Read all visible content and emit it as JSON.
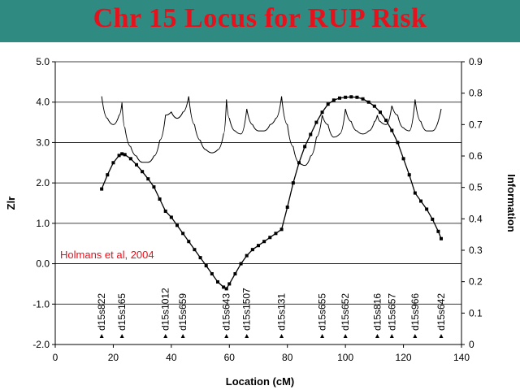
{
  "slide": {
    "title": "Chr 15 Locus for RUP Risk"
  },
  "colors": {
    "title_bar": "#2f8a82",
    "title_text": "#e8101a",
    "annotation": "#e8101a"
  },
  "chart_data": {
    "type": "line",
    "xlabel": "Location (cM)",
    "ylabel": "Zlr",
    "y2label": "Information",
    "xlim": [
      0,
      140
    ],
    "ylim": [
      -2.0,
      5.0
    ],
    "y2lim": [
      0,
      0.9
    ],
    "xticks": [
      "0",
      "20",
      "40",
      "60",
      "80",
      "100",
      "120",
      "140"
    ],
    "yticks": [
      "-2.0",
      "-1.0",
      "0.0",
      "1.0",
      "2.0",
      "3.0",
      "4.0",
      "5.0"
    ],
    "y2ticks": [
      "0",
      "0.1",
      "0.2",
      "0.3",
      "0.4",
      "0.5",
      "0.6",
      "0.7",
      "0.8",
      "0.9"
    ],
    "grid": "horizontal",
    "annotation": "Holmans et al, 2004",
    "markers": [
      {
        "name": "d15s822",
        "x": 16
      },
      {
        "name": "d15s165",
        "x": 23
      },
      {
        "name": "d15s1012",
        "x": 38
      },
      {
        "name": "d15s659",
        "x": 44
      },
      {
        "name": "d15s643",
        "x": 59
      },
      {
        "name": "d15s1507",
        "x": 66
      },
      {
        "name": "d15s131",
        "x": 78
      },
      {
        "name": "d15s655",
        "x": 92
      },
      {
        "name": "d15s652",
        "x": 100
      },
      {
        "name": "d15s816",
        "x": 111
      },
      {
        "name": "d15s657",
        "x": 116
      },
      {
        "name": "d15s966",
        "x": 124
      },
      {
        "name": "d15s642",
        "x": 133
      }
    ],
    "series": [
      {
        "axis": "left",
        "x": [
          16,
          18,
          20,
          22,
          23,
          24,
          26,
          28,
          30,
          32,
          34,
          36,
          38,
          40,
          42,
          44,
          46,
          48,
          50,
          52,
          54,
          56,
          58,
          59,
          60,
          62,
          64,
          66,
          68,
          70,
          72,
          74,
          76,
          78,
          80,
          82,
          84,
          86,
          88,
          90,
          92,
          94,
          96,
          98,
          100,
          102,
          104,
          106,
          108,
          110,
          112,
          114,
          116,
          118,
          120,
          122,
          124,
          126,
          128,
          130,
          132,
          133
        ],
        "values": [
          1.85,
          2.2,
          2.5,
          2.68,
          2.72,
          2.7,
          2.6,
          2.45,
          2.28,
          2.1,
          1.9,
          1.6,
          1.3,
          1.15,
          0.95,
          0.75,
          0.55,
          0.35,
          0.15,
          -0.05,
          -0.25,
          -0.45,
          -0.58,
          -0.62,
          -0.5,
          -0.25,
          0.0,
          0.2,
          0.35,
          0.45,
          0.55,
          0.65,
          0.75,
          0.85,
          1.4,
          2.0,
          2.5,
          2.9,
          3.2,
          3.5,
          3.75,
          3.95,
          4.05,
          4.1,
          4.12,
          4.13,
          4.12,
          4.08,
          4.0,
          3.9,
          3.75,
          3.55,
          3.3,
          3.0,
          2.6,
          2.2,
          1.75,
          1.55,
          1.35,
          1.1,
          0.8,
          0.62
        ]
      },
      {
        "axis": "right",
        "x": [
          16,
          18,
          20,
          22,
          23,
          24,
          26,
          28,
          30,
          32,
          34,
          36,
          38,
          40,
          42,
          44,
          46,
          48,
          50,
          52,
          54,
          56,
          58,
          59,
          60,
          62,
          64,
          66,
          68,
          70,
          72,
          74,
          76,
          78,
          80,
          82,
          84,
          86,
          88,
          90,
          92,
          94,
          96,
          98,
          100,
          102,
          104,
          106,
          108,
          110,
          111,
          112,
          114,
          116,
          118,
          120,
          122,
          124,
          126,
          128,
          130,
          133
        ],
        "values": [
          0.79,
          0.72,
          0.7,
          0.73,
          0.77,
          0.69,
          0.63,
          0.6,
          0.58,
          0.58,
          0.6,
          0.65,
          0.73,
          0.74,
          0.72,
          0.74,
          0.79,
          0.7,
          0.65,
          0.62,
          0.61,
          0.62,
          0.67,
          0.78,
          0.72,
          0.68,
          0.67,
          0.75,
          0.7,
          0.68,
          0.68,
          0.7,
          0.72,
          0.79,
          0.7,
          0.63,
          0.58,
          0.57,
          0.6,
          0.66,
          0.73,
          0.7,
          0.66,
          0.67,
          0.75,
          0.71,
          0.68,
          0.67,
          0.68,
          0.71,
          0.73,
          0.71,
          0.7,
          0.76,
          0.73,
          0.69,
          0.68,
          0.78,
          0.71,
          0.68,
          0.68,
          0.75
        ]
      }
    ]
  }
}
